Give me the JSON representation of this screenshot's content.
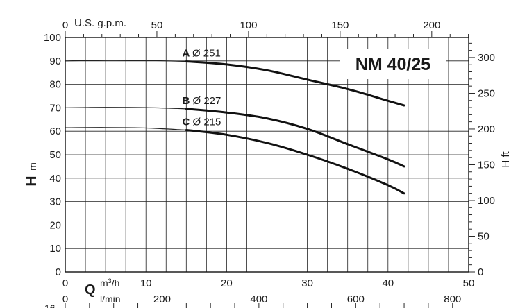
{
  "chart_data": {
    "type": "line",
    "title": "NM 40/25",
    "ylabel_main": "H",
    "ylabel_unit": "m",
    "ylabel_right": "H ft",
    "xlabel_main": "Q",
    "xlabel_unit_m3h": "m³/h",
    "xlabel_unit_lmin": "l/min",
    "top_axis_label": "U.S. g.p.m.",
    "xlim": [
      0,
      50
    ],
    "ylim": [
      0,
      100
    ],
    "grid": true,
    "x_ticks": [
      0,
      10,
      20,
      30,
      40,
      50
    ],
    "y_ticks": [
      0,
      10,
      20,
      30,
      40,
      50,
      60,
      70,
      80,
      90,
      100
    ],
    "right_ticks_ft": [
      0,
      50,
      100,
      150,
      200,
      250,
      300
    ],
    "top_ticks_gpm": [
      0,
      50,
      100,
      150,
      200
    ],
    "lmin_ticks": [
      0,
      200,
      400,
      600,
      800
    ],
    "bottom_cut_label": "16",
    "series": [
      {
        "name": "A Ø 251",
        "letter": "A",
        "diameter": "Ø 251",
        "x": [
          0,
          5,
          10,
          15,
          20,
          25,
          30,
          35,
          40,
          42
        ],
        "y": [
          90,
          90.3,
          90.2,
          89.8,
          88.5,
          86,
          82,
          78,
          73,
          71
        ],
        "points": [
          [
            0,
            90
          ],
          [
            5,
            90.3
          ],
          [
            10,
            90.2
          ],
          [
            15,
            89.8
          ],
          [
            20,
            88.5
          ],
          [
            25,
            86
          ],
          [
            30,
            82
          ],
          [
            35,
            78
          ],
          [
            40,
            73
          ],
          [
            42,
            71
          ]
        ]
      },
      {
        "name": "B Ø 227",
        "letter": "B",
        "diameter": "Ø 227",
        "x": [
          0,
          5,
          10,
          15,
          20,
          25,
          30,
          35,
          40,
          42
        ],
        "y": [
          70,
          70.2,
          70.1,
          69.6,
          68,
          65.5,
          61,
          54.5,
          48,
          45
        ],
        "points": [
          [
            0,
            70
          ],
          [
            5,
            70.2
          ],
          [
            10,
            70.1
          ],
          [
            15,
            69.6
          ],
          [
            20,
            68
          ],
          [
            25,
            65.5
          ],
          [
            30,
            61
          ],
          [
            35,
            54.5
          ],
          [
            40,
            48
          ],
          [
            42,
            45
          ]
        ]
      },
      {
        "name": "C Ø 215",
        "letter": "C",
        "diameter": "Ø 215",
        "x": [
          0,
          5,
          10,
          15,
          20,
          25,
          30,
          35,
          40,
          42
        ],
        "y": [
          61.5,
          61.6,
          61.4,
          60.5,
          58.5,
          55,
          50,
          44,
          37,
          33.5
        ],
        "points": [
          [
            0,
            61.5
          ],
          [
            5,
            61.6
          ],
          [
            10,
            61.4
          ],
          [
            15,
            60.5
          ],
          [
            20,
            58.5
          ],
          [
            25,
            55
          ],
          [
            30,
            50
          ],
          [
            35,
            44
          ],
          [
            40,
            37
          ],
          [
            42,
            33.5
          ]
        ]
      }
    ]
  }
}
